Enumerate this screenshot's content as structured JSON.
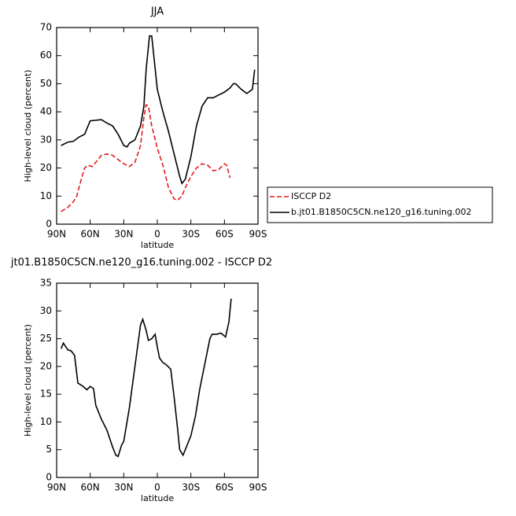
{
  "chart_data": [
    {
      "type": "line",
      "title": "JJA",
      "xlabel": "latitude",
      "ylabel": "High-level cloud (percent)",
      "xlim": [
        90,
        -90
      ],
      "ylim": [
        0,
        70
      ],
      "xticks": [
        {
          "value": 90,
          "label": "90N"
        },
        {
          "value": 60,
          "label": "60N"
        },
        {
          "value": 30,
          "label": "30N"
        },
        0,
        {
          "value": -30,
          "label": "30S"
        },
        {
          "value": -60,
          "label": "60S"
        },
        {
          "value": -90,
          "label": "90S"
        }
      ],
      "yticks": [
        0,
        10,
        20,
        30,
        40,
        50,
        60,
        70
      ],
      "legend": "outside-right",
      "series": [
        {
          "name": "ISCCP D2",
          "color": "#e41a1c",
          "dashed": true,
          "x": [
            86,
            80,
            75,
            72,
            68,
            65,
            62,
            58,
            55,
            50,
            45,
            40,
            35,
            30,
            25,
            20,
            15,
            12,
            10,
            8,
            5,
            0,
            -5,
            -10,
            -15,
            -18,
            -22,
            -25,
            -30,
            -35,
            -40,
            -45,
            -50,
            -55,
            -60,
            -62,
            -65
          ],
          "values": [
            4.5,
            6,
            8,
            10,
            16,
            20,
            21,
            20.5,
            22,
            24.5,
            25,
            24.5,
            23,
            21.5,
            20.5,
            22,
            28,
            38,
            42.5,
            42,
            35,
            27,
            21,
            13,
            9,
            8.5,
            10,
            13,
            17,
            20,
            21.5,
            21,
            19,
            19.5,
            21.5,
            21,
            16.5
          ]
        },
        {
          "name": "b.jt01.B1850C5CN.ne120_g16.tuning.002",
          "color": "#000000",
          "dashed": false,
          "x": [
            86,
            80,
            75,
            70,
            65,
            60,
            55,
            50,
            45,
            40,
            35,
            30,
            27,
            25,
            20,
            15,
            12,
            10,
            7,
            5,
            0,
            -5,
            -10,
            -15,
            -20,
            -22,
            -25,
            -30,
            -35,
            -40,
            -45,
            -50,
            -55,
            -60,
            -65,
            -68,
            -70,
            -75,
            -80,
            -85,
            -87
          ],
          "values": [
            28,
            29.2,
            29.5,
            31,
            32,
            36.8,
            37,
            37.2,
            36,
            35,
            32,
            28,
            27.5,
            28.8,
            30,
            35,
            42,
            55,
            67,
            67,
            48,
            40,
            33,
            25,
            17,
            14.5,
            16,
            24,
            35,
            42,
            45,
            45,
            46,
            47,
            48.5,
            50,
            50,
            48,
            46.5,
            48,
            55
          ]
        }
      ]
    },
    {
      "type": "line",
      "title": "jt01.B1850C5CN.ne120_g16.tuning.002 - ISCCP D2",
      "xlabel": "latitude",
      "ylabel": "High-level cloud (percent)",
      "xlim": [
        90,
        -90
      ],
      "ylim": [
        0,
        35
      ],
      "xticks": [
        {
          "value": 90,
          "label": "90N"
        },
        {
          "value": 60,
          "label": "60N"
        },
        {
          "value": 30,
          "label": "30N"
        },
        0,
        {
          "value": -30,
          "label": "30S"
        },
        {
          "value": -60,
          "label": "60S"
        },
        {
          "value": -90,
          "label": "90S"
        }
      ],
      "yticks": [
        0,
        5,
        10,
        15,
        20,
        25,
        30,
        35
      ],
      "color": "#000000",
      "x": [
        86,
        84,
        80,
        77,
        74,
        71,
        67,
        63,
        60,
        57,
        55,
        50,
        45,
        40,
        37,
        35,
        32,
        30,
        25,
        22,
        18,
        15,
        13,
        10,
        8,
        5,
        2,
        0,
        -2,
        -5,
        -8,
        -12,
        -15,
        -18,
        -20,
        -23,
        -26,
        -30,
        -34,
        -38,
        -42,
        -47,
        -49,
        -53,
        -57,
        -61,
        -64,
        -66
      ],
      "values": [
        23.2,
        24.2,
        23,
        22.8,
        22,
        17,
        16.5,
        15.8,
        16.4,
        16,
        13,
        10.5,
        8.5,
        5.5,
        4,
        3.8,
        5.8,
        6.5,
        12.5,
        17,
        23,
        27.5,
        28.5,
        26.5,
        24.7,
        25,
        25.8,
        23.5,
        21.5,
        20.7,
        20.3,
        19.5,
        14.5,
        9,
        5,
        4,
        5.5,
        7.5,
        11,
        16,
        20,
        25,
        25.8,
        25.8,
        26,
        25.3,
        28,
        32.2
      ]
    }
  ]
}
